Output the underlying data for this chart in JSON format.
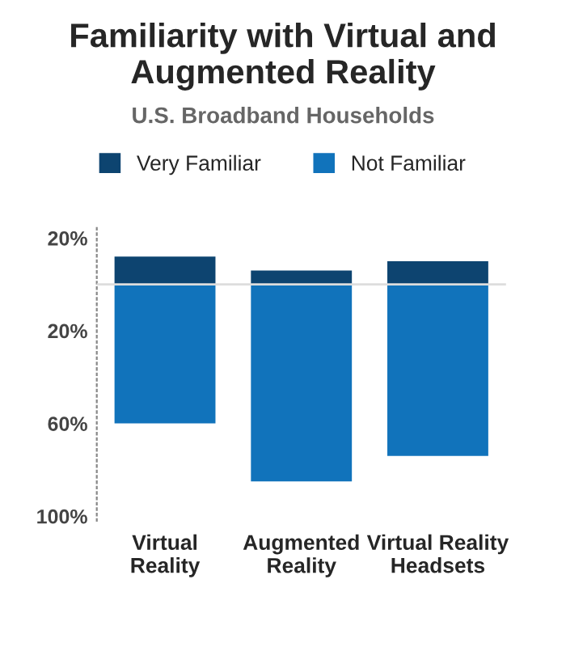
{
  "chart_data": {
    "type": "bar",
    "title": "Familiarity with Virtual and Augmented Reality",
    "subtitle": "U.S. Broadband Households",
    "categories": [
      "Virtual\nReality",
      "Augmented\nReality",
      "Virtual Reality\nHeadsets"
    ],
    "stacked": true,
    "series": [
      {
        "name": "Very Familiar",
        "color": "#0d4470",
        "values": [
          12,
          6,
          10
        ]
      },
      {
        "name": "Not Familiar",
        "color": "#1173bb",
        "values": [
          -60,
          -85,
          -74
        ]
      }
    ],
    "ylim": [
      -102,
      25
    ],
    "yticks": [
      {
        "value": 20,
        "label": "20%"
      },
      {
        "value": -20,
        "label": "20%"
      },
      {
        "value": -60,
        "label": "60%"
      },
      {
        "value": -100,
        "label": "100%"
      }
    ],
    "ref_lines": [
      {
        "axis": "y",
        "value": 0,
        "color": "#dddddd"
      }
    ],
    "legend": "top",
    "grid": false
  }
}
